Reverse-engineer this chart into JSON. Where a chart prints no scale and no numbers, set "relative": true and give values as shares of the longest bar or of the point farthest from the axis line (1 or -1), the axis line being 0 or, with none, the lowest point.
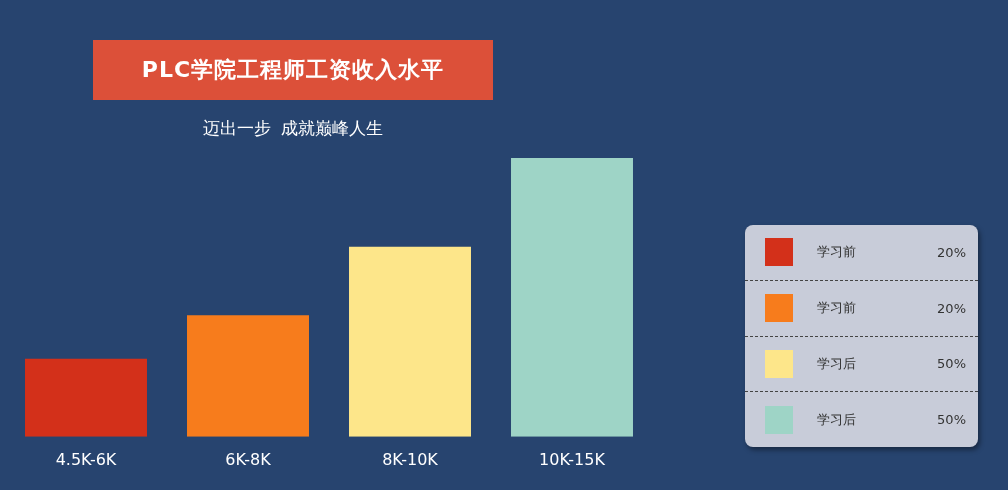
{
  "chart_data": {
    "type": "bar",
    "title": "PLC学院工程师工资收入水平",
    "subtitle": "迈出一步  成就巅峰人生",
    "relative": true,
    "legend": "right",
    "categories": [
      "4.5K-6K",
      "6K-8K",
      "8K-10K",
      "10K-15K"
    ],
    "series": [
      {
        "name": "学习前",
        "color": "#d3301a",
        "values": [
          0.28,
          null,
          null,
          null
        ]
      },
      {
        "name": "学习前",
        "color": "#f77c1c",
        "values": [
          null,
          0.436,
          null,
          null
        ]
      },
      {
        "name": "学习后",
        "color": "#fde68a",
        "values": [
          null,
          null,
          0.682,
          null
        ]
      },
      {
        "name": "学习后",
        "color": "#9ed4c6",
        "values": [
          null,
          null,
          null,
          1
        ]
      }
    ],
    "annotations": [
      "20%",
      "20%",
      "50%",
      "50%"
    ]
  }
}
